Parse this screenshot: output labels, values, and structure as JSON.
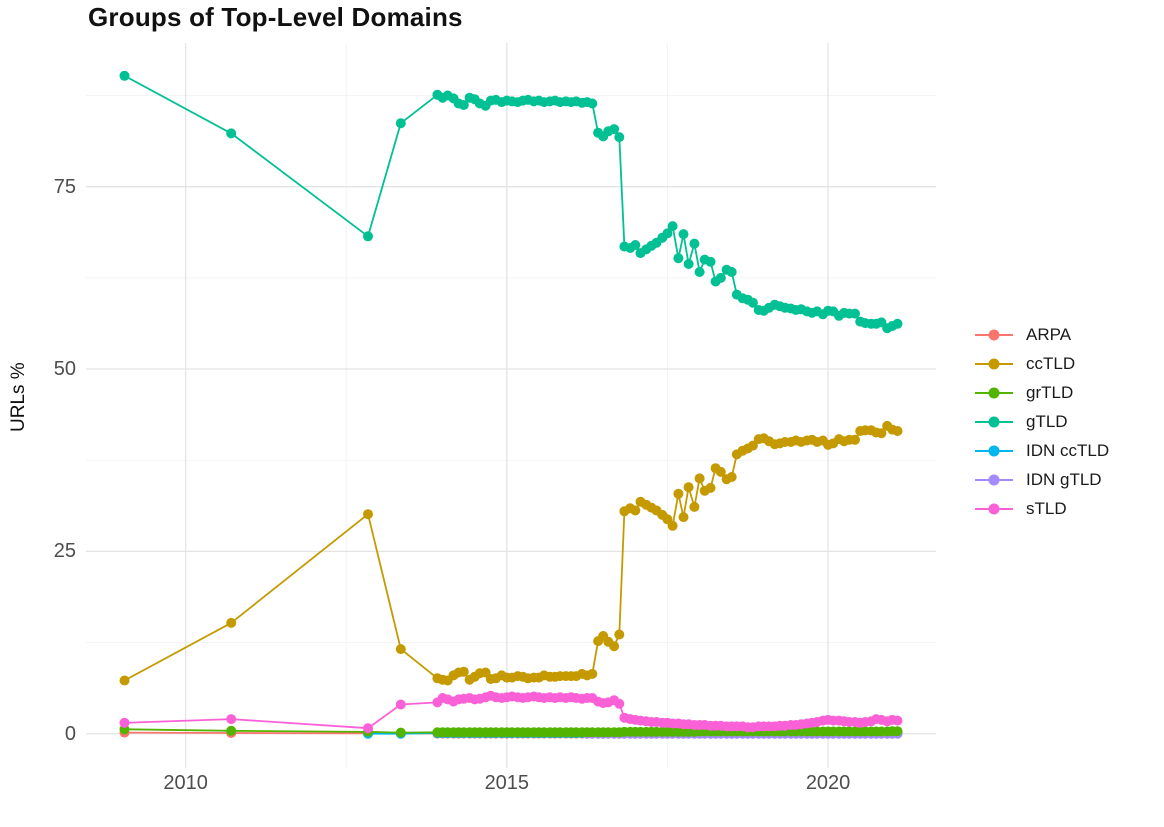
{
  "chart_data": {
    "type": "line",
    "title": "Groups of Top-Level Domains",
    "xlabel": "",
    "ylabel": "URLs %",
    "grid": true,
    "legend_position": "right",
    "xlim": [
      2008.45,
      2021.68
    ],
    "ylim": [
      -4.7,
      94.7
    ],
    "x_ticks": [
      {
        "value": 2010,
        "label": "2010"
      },
      {
        "value": 2015,
        "label": "2015"
      },
      {
        "value": 2020,
        "label": "2020"
      }
    ],
    "y_ticks": [
      {
        "value": 0,
        "label": "0"
      },
      {
        "value": 25,
        "label": "25"
      },
      {
        "value": 50,
        "label": "50"
      },
      {
        "value": 75,
        "label": "75"
      }
    ],
    "x_minor": [
      2012.5,
      2017.5
    ],
    "y_minor": [
      12.5,
      37.5,
      62.5,
      87.5
    ],
    "grid_major_color": "#e4e4e4",
    "grid_minor_color": "#f2f2f2",
    "draw_order": [
      "ARPA",
      "IDN ccTLD",
      "IDN gTLD",
      "grTLD",
      "ccTLD",
      "gTLD",
      "sTLD"
    ],
    "monthly_x": [
      2013.92,
      2014.0,
      2014.08,
      2014.17,
      2014.25,
      2014.33,
      2014.42,
      2014.5,
      2014.58,
      2014.67,
      2014.75,
      2014.83,
      2014.92,
      2015.0,
      2015.08,
      2015.17,
      2015.25,
      2015.33,
      2015.42,
      2015.5,
      2015.58,
      2015.67,
      2015.75,
      2015.83,
      2015.92,
      2016.0,
      2016.08,
      2016.17,
      2016.25,
      2016.33,
      2016.42,
      2016.5,
      2016.58,
      2016.67,
      2016.75,
      2016.83,
      2016.92,
      2017.0,
      2017.08,
      2017.17,
      2017.25,
      2017.33,
      2017.42,
      2017.5,
      2017.58,
      2017.67,
      2017.75,
      2017.83,
      2017.92,
      2018.0,
      2018.08,
      2018.17,
      2018.25,
      2018.33,
      2018.42,
      2018.5,
      2018.58,
      2018.67,
      2018.75,
      2018.83,
      2018.92,
      2019.0,
      2019.08,
      2019.17,
      2019.25,
      2019.33,
      2019.42,
      2019.5,
      2019.58,
      2019.67,
      2019.75,
      2019.83,
      2019.92,
      2020.0,
      2020.08,
      2020.17,
      2020.25,
      2020.33,
      2020.42,
      2020.5,
      2020.58,
      2020.67,
      2020.75,
      2020.83,
      2020.92,
      2021.0,
      2021.08
    ],
    "series": [
      {
        "name": "ARPA",
        "color": "#F8766D",
        "early": [
          [
            2009.05,
            0.15
          ],
          [
            2010.71,
            0.1
          ],
          [
            2012.84,
            0.05
          ],
          [
            2013.35,
            0.04
          ]
        ],
        "monthly_y_fill": 0.02
      },
      {
        "name": "ccTLD",
        "color": "#C49A00",
        "early": [
          [
            2009.05,
            7.3
          ],
          [
            2010.71,
            15.2
          ],
          [
            2012.84,
            30.1
          ],
          [
            2013.35,
            11.6
          ]
        ],
        "monthly_y": [
          7.6,
          7.4,
          7.3,
          8.0,
          8.4,
          8.5,
          7.4,
          7.8,
          8.3,
          8.4,
          7.5,
          7.6,
          8.0,
          7.7,
          7.7,
          7.9,
          7.8,
          7.6,
          7.7,
          7.7,
          8.0,
          7.8,
          7.8,
          7.9,
          7.9,
          7.9,
          7.9,
          8.2,
          8.0,
          8.2,
          12.7,
          13.4,
          12.6,
          12.0,
          13.6,
          30.5,
          30.9,
          30.6,
          31.8,
          31.4,
          31.0,
          30.6,
          30.0,
          29.4,
          28.5,
          32.9,
          29.7,
          33.8,
          31.1,
          35.0,
          33.3,
          33.7,
          36.4,
          35.9,
          34.9,
          35.2,
          38.3,
          38.8,
          39.1,
          39.5,
          40.4,
          40.5,
          40.1,
          39.7,
          39.8,
          40.0,
          40.0,
          40.2,
          40.0,
          40.2,
          40.3,
          40.0,
          40.2,
          39.6,
          39.8,
          40.4,
          40.1,
          40.3,
          40.3,
          41.5,
          41.6,
          41.6,
          41.3,
          41.2,
          42.2,
          41.7,
          41.5
        ]
      },
      {
        "name": "grTLD",
        "color": "#53B400",
        "early": [
          [
            2009.05,
            0.6
          ],
          [
            2010.71,
            0.4
          ],
          [
            2012.84,
            0.25
          ],
          [
            2013.35,
            0.15
          ]
        ],
        "monthly_y": [
          0.2,
          0.2,
          0.2,
          0.2,
          0.2,
          0.2,
          0.2,
          0.2,
          0.2,
          0.2,
          0.2,
          0.2,
          0.2,
          0.2,
          0.2,
          0.2,
          0.2,
          0.2,
          0.2,
          0.2,
          0.2,
          0.2,
          0.2,
          0.2,
          0.2,
          0.2,
          0.2,
          0.2,
          0.2,
          0.2,
          0.2,
          0.2,
          0.2,
          0.2,
          0.2,
          0.25,
          0.25,
          0.25,
          0.25,
          0.25,
          0.25,
          0.25,
          0.25,
          0.25,
          0.25,
          0.25,
          0.25,
          0.25,
          0.25,
          0.3,
          0.3,
          0.3,
          0.3,
          0.3,
          0.3,
          0.3,
          0.3,
          0.3,
          0.3,
          0.3,
          0.3,
          0.3,
          0.3,
          0.3,
          0.3,
          0.3,
          0.3,
          0.3,
          0.3,
          0.3,
          0.3,
          0.3,
          0.3,
          0.3,
          0.3,
          0.3,
          0.3,
          0.3,
          0.3,
          0.3,
          0.3,
          0.3,
          0.3,
          0.3,
          0.3,
          0.35,
          0.35
        ]
      },
      {
        "name": "gTLD",
        "color": "#00C094",
        "early": [
          [
            2009.05,
            90.2
          ],
          [
            2010.71,
            82.3
          ],
          [
            2012.84,
            68.2
          ],
          [
            2013.35,
            83.7
          ]
        ],
        "monthly_y": [
          87.6,
          87.2,
          87.5,
          87.1,
          86.4,
          86.2,
          87.2,
          87.0,
          86.4,
          86.1,
          86.8,
          86.9,
          86.6,
          86.8,
          86.7,
          86.6,
          86.8,
          86.9,
          86.7,
          86.8,
          86.6,
          86.7,
          86.8,
          86.6,
          86.7,
          86.6,
          86.7,
          86.5,
          86.6,
          86.4,
          82.4,
          81.9,
          82.6,
          82.9,
          81.8,
          66.8,
          66.6,
          67.0,
          65.9,
          66.4,
          66.9,
          67.3,
          68.0,
          68.6,
          69.6,
          65.2,
          68.5,
          64.4,
          67.2,
          63.3,
          65.0,
          64.7,
          62.0,
          62.5,
          63.6,
          63.3,
          60.2,
          59.7,
          59.5,
          59.1,
          58.1,
          58.0,
          58.4,
          58.8,
          58.6,
          58.4,
          58.3,
          58.1,
          58.2,
          57.9,
          57.7,
          57.9,
          57.5,
          58.0,
          57.9,
          57.3,
          57.7,
          57.6,
          57.6,
          56.5,
          56.3,
          56.2,
          56.2,
          56.4,
          55.6,
          55.9,
          56.2
        ]
      },
      {
        "name": "IDN ccTLD",
        "color": "#00B6EB",
        "early": [
          [
            2012.84,
            0.0
          ],
          [
            2013.35,
            0.0
          ]
        ],
        "monthly_y_fill": 0.08
      },
      {
        "name": "IDN gTLD",
        "color": "#A58AFF",
        "early": [],
        "monthly_start_index": 28,
        "monthly_y_fill": 0.0
      },
      {
        "name": "sTLD",
        "color": "#FB61D7",
        "early": [
          [
            2009.05,
            1.5
          ],
          [
            2010.71,
            2.0
          ],
          [
            2012.84,
            0.75
          ],
          [
            2013.35,
            4.0
          ]
        ],
        "monthly_y": [
          4.3,
          4.9,
          4.7,
          4.4,
          4.7,
          4.8,
          4.9,
          4.7,
          4.8,
          5.0,
          5.2,
          5.0,
          4.9,
          5.0,
          5.1,
          5.0,
          4.9,
          5.0,
          5.1,
          5.0,
          4.9,
          5.0,
          4.9,
          5.0,
          4.9,
          5.0,
          4.9,
          4.8,
          4.9,
          4.9,
          4.4,
          4.2,
          4.3,
          4.6,
          4.1,
          2.2,
          2.0,
          1.9,
          1.8,
          1.7,
          1.6,
          1.6,
          1.5,
          1.5,
          1.4,
          1.4,
          1.3,
          1.3,
          1.2,
          1.2,
          1.2,
          1.1,
          1.1,
          1.1,
          1.0,
          1.0,
          1.0,
          1.0,
          0.9,
          0.9,
          1.0,
          1.0,
          1.0,
          1.0,
          1.1,
          1.1,
          1.2,
          1.2,
          1.3,
          1.4,
          1.5,
          1.6,
          1.8,
          1.9,
          1.8,
          1.8,
          1.7,
          1.6,
          1.6,
          1.5,
          1.6,
          1.7,
          2.0,
          1.9,
          1.7,
          1.9,
          1.8
        ]
      }
    ]
  }
}
